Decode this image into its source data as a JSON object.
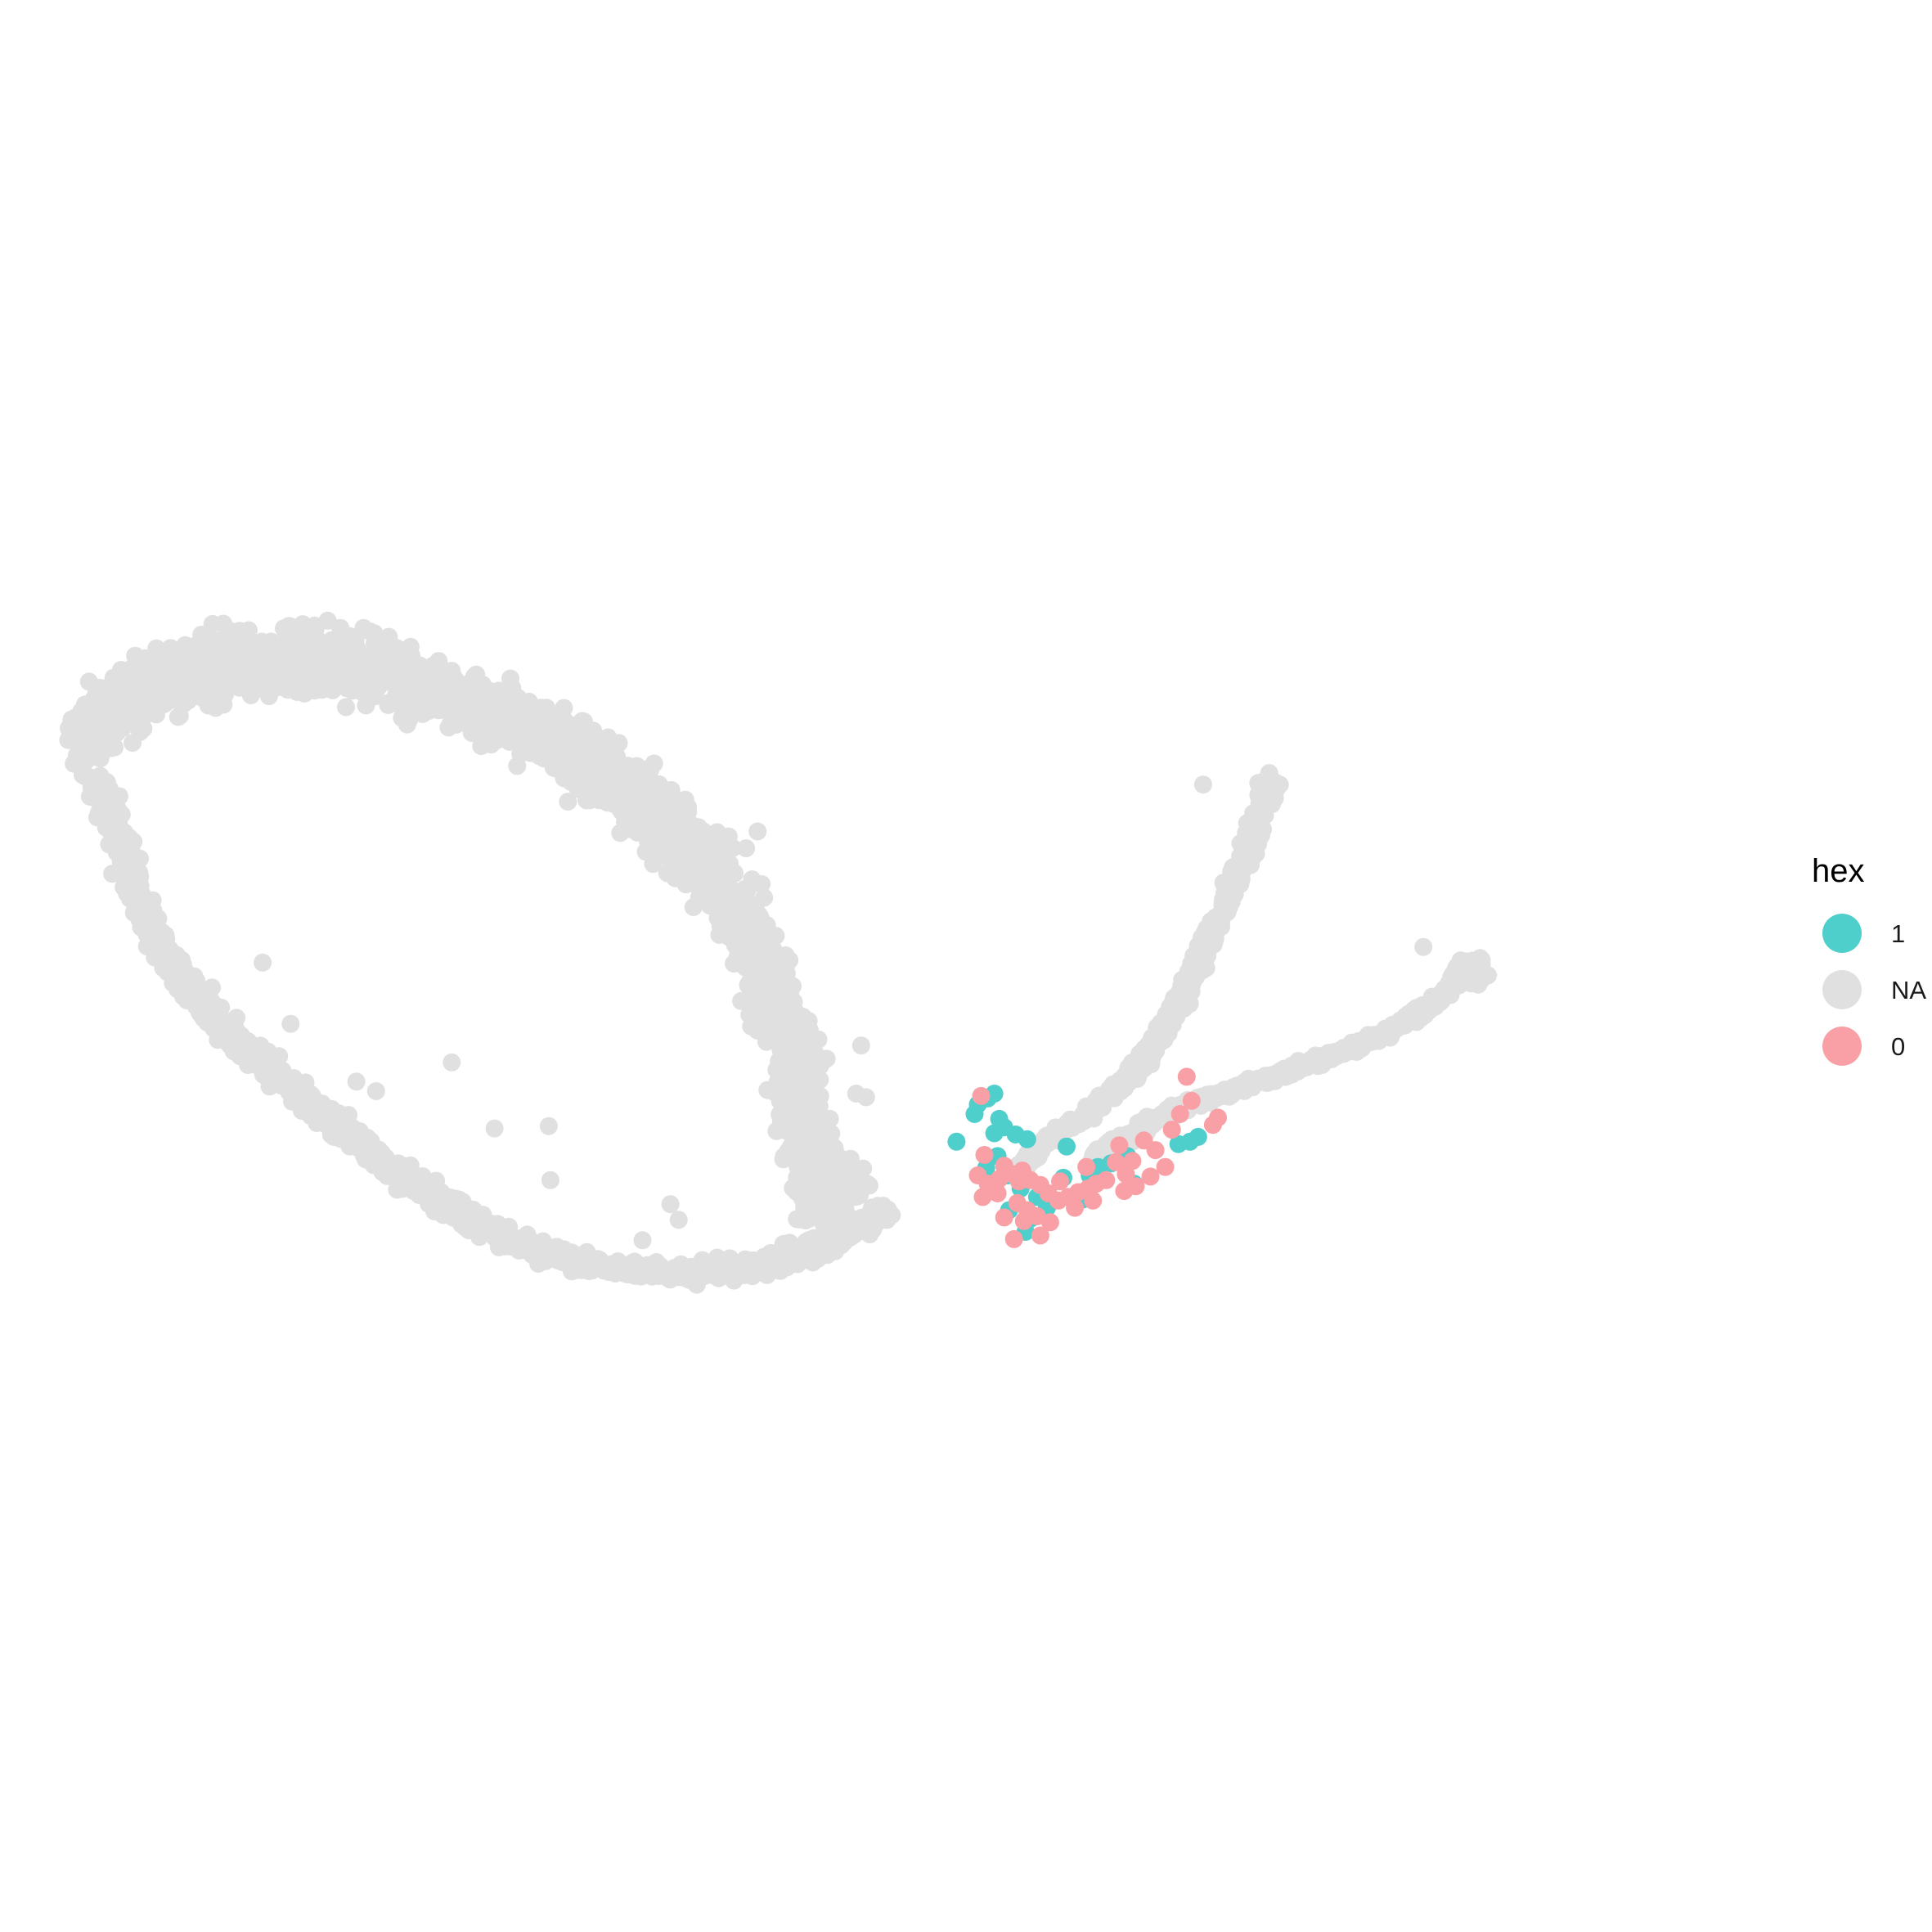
{
  "chart_data": {
    "type": "scatter",
    "title": "",
    "xlabel": "",
    "ylabel": "",
    "grid": false,
    "axes_visible": false,
    "xlim": [
      0,
      100
    ],
    "ylim": [
      0,
      100
    ],
    "legend": {
      "title": "hex",
      "placement": "right",
      "entries": [
        {
          "label": "1",
          "color": "#4ECFCB"
        },
        {
          "label": "NA",
          "color": "#E0E0E0"
        },
        {
          "label": "0",
          "color": "#F8A0A6"
        }
      ]
    },
    "series": [
      {
        "name": "NA",
        "color": "#E0E0E0",
        "outliers": [
          [
            11.5,
            49.2
          ],
          [
            23.0,
            40.9
          ],
          [
            13.2,
            44.1
          ],
          [
            28.9,
            35.6
          ],
          [
            40.6,
            46.0
          ],
          [
            42.0,
            54.6
          ],
          [
            46.0,
            36.2
          ],
          [
            34.6,
            26.1
          ],
          [
            36.3,
            29.1
          ],
          [
            36.8,
            27.8
          ],
          [
            29.0,
            31.1
          ],
          [
            43.1,
            35.3
          ],
          [
            44.1,
            35.9
          ],
          [
            45.0,
            39.3
          ],
          [
            47.6,
            38.3
          ],
          [
            48.2,
            38.0
          ],
          [
            45.3,
            42.8
          ],
          [
            45.8,
            41.2
          ],
          [
            47.9,
            42.3
          ],
          [
            68.7,
            64.0
          ],
          [
            82.1,
            50.5
          ],
          [
            25.6,
            35.4
          ],
          [
            17.2,
            39.3
          ],
          [
            18.4,
            38.5
          ],
          [
            40.9,
            58.7
          ],
          [
            41.6,
            60.1
          ],
          [
            39.0,
            55.5
          ]
        ]
      },
      {
        "name": "1",
        "color": "#4ECFCB",
        "points": [
          [
            55.0,
            37.4
          ],
          [
            55.6,
            37.9
          ],
          [
            56.0,
            38.3
          ],
          [
            56.3,
            36.2
          ],
          [
            54.8,
            36.6
          ],
          [
            56.0,
            35.0
          ],
          [
            56.6,
            35.5
          ],
          [
            57.3,
            34.9
          ],
          [
            58.0,
            34.5
          ],
          [
            56.2,
            33.1
          ],
          [
            55.5,
            32.1
          ],
          [
            56.8,
            31.5
          ],
          [
            57.6,
            30.4
          ],
          [
            58.6,
            29.7
          ],
          [
            60.2,
            31.3
          ],
          [
            61.8,
            31.5
          ],
          [
            62.3,
            32.2
          ],
          [
            63.1,
            32.5
          ],
          [
            64.1,
            33.1
          ],
          [
            64.5,
            30.8
          ],
          [
            60.4,
            33.9
          ],
          [
            67.2,
            34.1
          ],
          [
            67.9,
            34.3
          ],
          [
            68.4,
            34.7
          ],
          [
            57.9,
            26.8
          ],
          [
            58.2,
            27.9
          ],
          [
            56.9,
            28.6
          ],
          [
            59.2,
            28.8
          ],
          [
            61.4,
            29.5
          ],
          [
            53.7,
            34.3
          ]
        ]
      },
      {
        "name": "0",
        "color": "#F8A0A6",
        "points": [
          [
            55.2,
            38.1
          ],
          [
            55.4,
            33.2
          ],
          [
            56.6,
            32.3
          ],
          [
            57.1,
            31.6
          ],
          [
            57.7,
            31.9
          ],
          [
            58.2,
            31.1
          ],
          [
            58.8,
            30.7
          ],
          [
            59.3,
            30.0
          ],
          [
            59.9,
            29.4
          ],
          [
            60.5,
            29.7
          ],
          [
            61.1,
            30.1
          ],
          [
            61.7,
            30.4
          ],
          [
            62.2,
            30.8
          ],
          [
            62.8,
            31.1
          ],
          [
            57.4,
            29.2
          ],
          [
            58.0,
            28.6
          ],
          [
            58.6,
            28.1
          ],
          [
            59.4,
            27.6
          ],
          [
            57.2,
            26.2
          ],
          [
            56.6,
            28.0
          ],
          [
            56.2,
            30.0
          ],
          [
            55.6,
            30.8
          ],
          [
            55.0,
            31.5
          ],
          [
            61.6,
            32.2
          ],
          [
            63.4,
            32.6
          ],
          [
            64.0,
            31.6
          ],
          [
            64.6,
            30.6
          ],
          [
            65.5,
            31.4
          ],
          [
            66.4,
            32.2
          ],
          [
            63.9,
            30.2
          ],
          [
            60.9,
            28.8
          ],
          [
            65.1,
            34.4
          ],
          [
            65.8,
            33.6
          ],
          [
            66.8,
            35.3
          ],
          [
            69.3,
            35.7
          ],
          [
            67.3,
            36.6
          ],
          [
            69.6,
            36.3
          ],
          [
            68.0,
            37.7
          ],
          [
            67.7,
            39.7
          ],
          [
            55.3,
            29.7
          ],
          [
            57.8,
            27.7
          ],
          [
            58.8,
            26.5
          ],
          [
            57.5,
            31.0
          ],
          [
            56.3,
            31.2
          ],
          [
            60.0,
            31.0
          ],
          [
            62.0,
            29.4
          ],
          [
            63.6,
            34.0
          ],
          [
            64.4,
            32.7
          ]
        ]
      }
    ]
  }
}
